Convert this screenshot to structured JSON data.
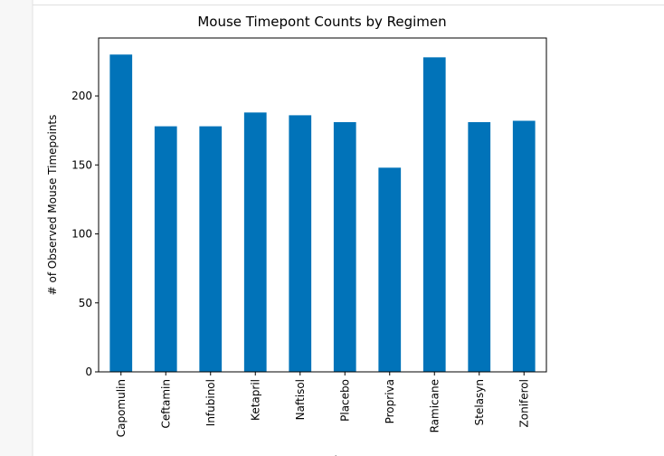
{
  "chart_data": {
    "type": "bar",
    "title": "Mouse Timepont Counts by Regimen",
    "xlabel": "Drug Regimen",
    "ylabel": "# of Observed Mouse Timepoints",
    "categories": [
      "Capomulin",
      "Ceftamin",
      "Infubinol",
      "Ketapril",
      "Naftisol",
      "Placebo",
      "Propriva",
      "Ramicane",
      "Stelasyn",
      "Zoniferol"
    ],
    "values": [
      230,
      178,
      178,
      188,
      186,
      181,
      148,
      228,
      181,
      182
    ],
    "color": "#0173b9",
    "ylim": [
      0,
      242
    ],
    "yticks": [
      0,
      50,
      100,
      150,
      200
    ],
    "grid": false
  }
}
